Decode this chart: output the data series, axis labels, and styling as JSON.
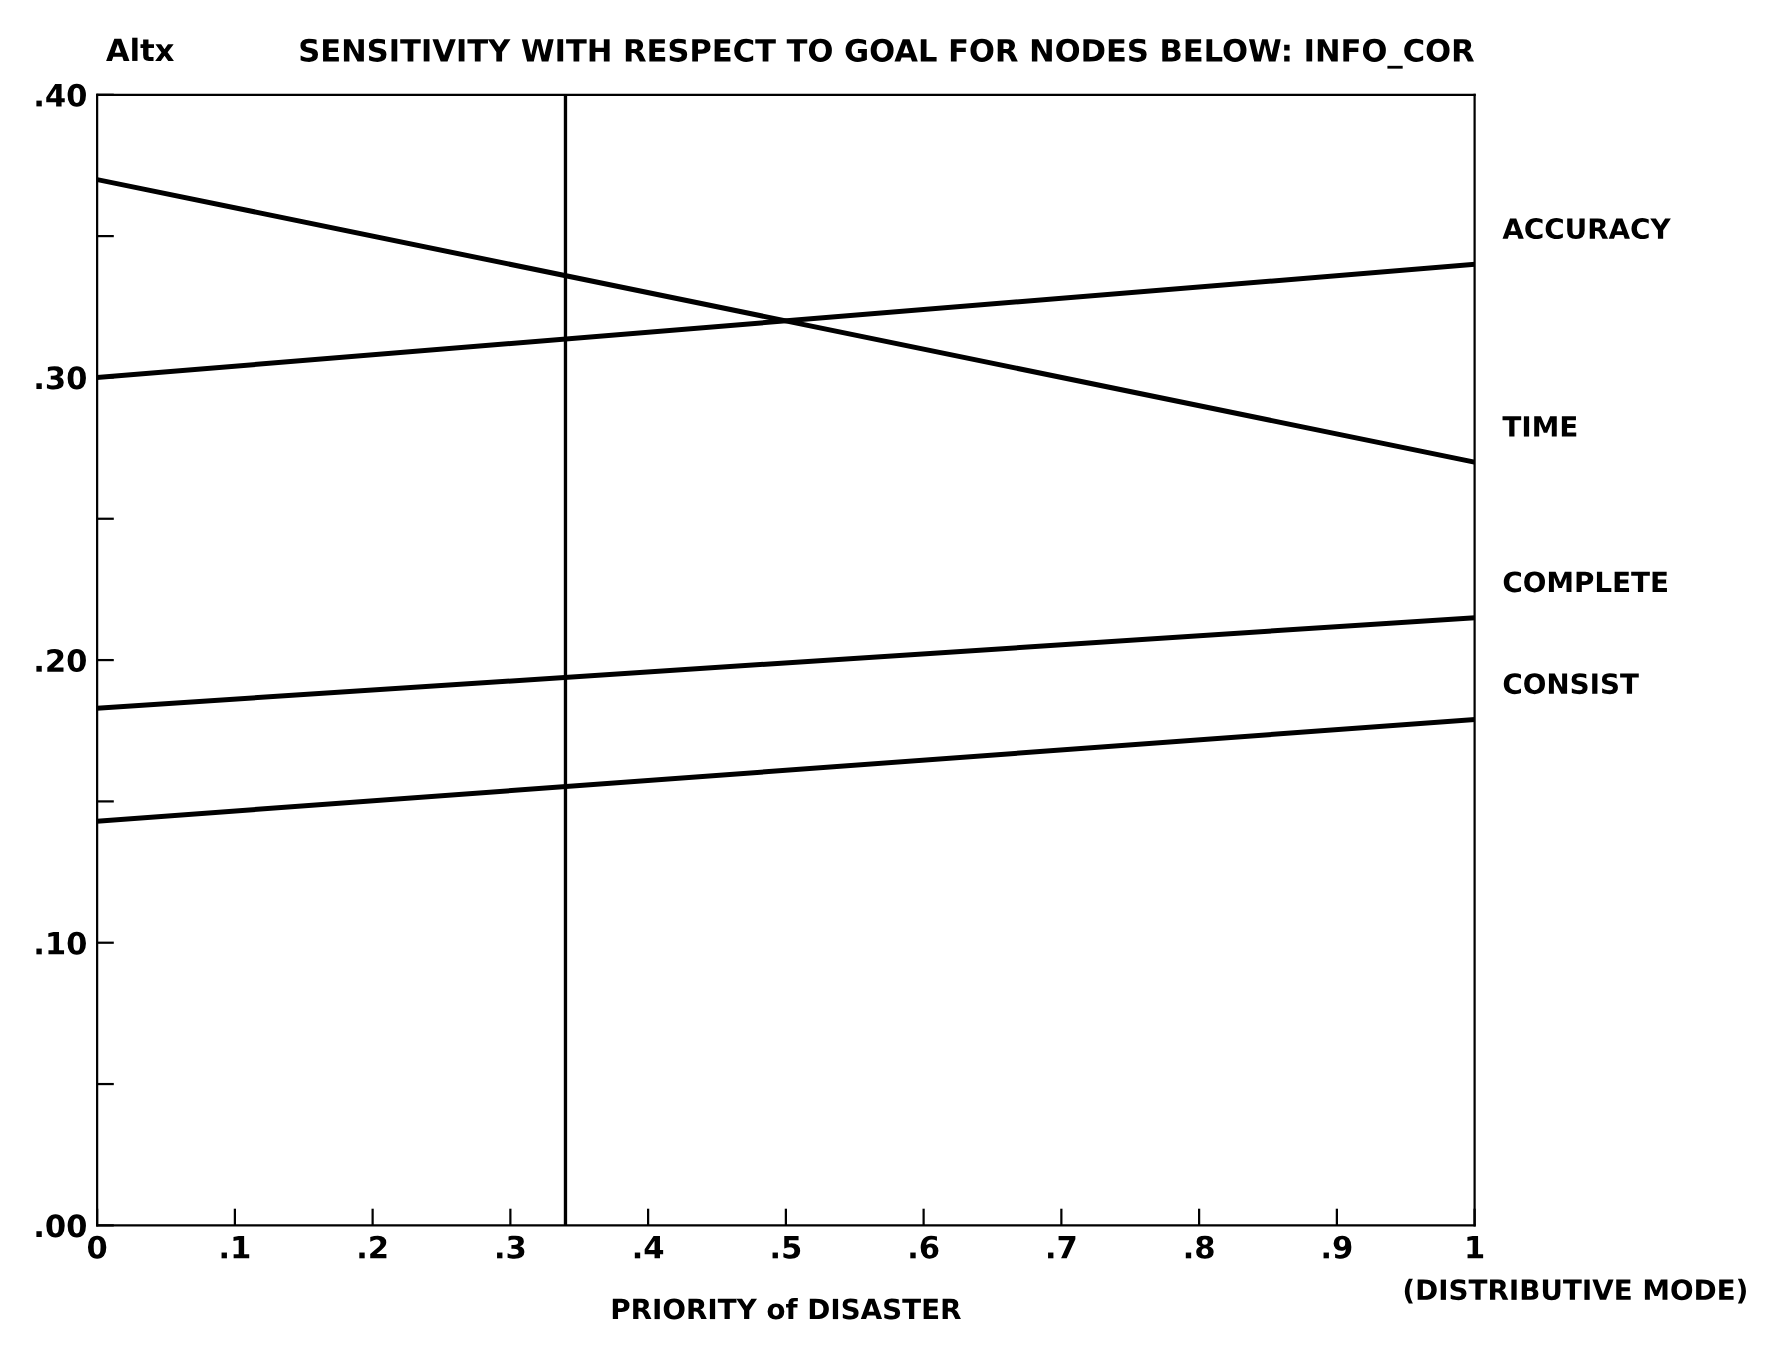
{
  "chart_data": {
    "type": "line",
    "title": "SENSITIVITY WITH RESPECT TO GOAL FOR NODES BELOW: INFO_COR",
    "ylabel": "Altx",
    "xlabel": "PRIORITY of DISASTER",
    "annotations": [
      "(DISTRIBUTIVE MODE)"
    ],
    "x": [
      0,
      1
    ],
    "series": [
      {
        "name": "ACCURACY",
        "color": "#000000",
        "values": [
          0.3,
          0.34
        ]
      },
      {
        "name": "TIME",
        "color": "#000000",
        "values": [
          0.37,
          0.27
        ]
      },
      {
        "name": "COMPLETE",
        "color": "#000000",
        "values": [
          0.183,
          0.215
        ]
      },
      {
        "name": "CONSIST",
        "color": "#000000",
        "values": [
          0.143,
          0.179
        ]
      }
    ],
    "xlim": [
      0,
      1
    ],
    "ylim": [
      0,
      0.4
    ],
    "xticks": [
      {
        "value": 0,
        "label": "0"
      },
      {
        "value": 0.1,
        "label": ".1"
      },
      {
        "value": 0.2,
        "label": ".2"
      },
      {
        "value": 0.3,
        "label": ".3"
      },
      {
        "value": 0.4,
        "label": ".4"
      },
      {
        "value": 0.5,
        "label": ".5"
      },
      {
        "value": 0.6,
        "label": ".6"
      },
      {
        "value": 0.7,
        "label": ".7"
      },
      {
        "value": 0.8,
        "label": ".8"
      },
      {
        "value": 0.9,
        "label": ".9"
      },
      {
        "value": 1,
        "label": "1"
      }
    ],
    "yticks": [
      {
        "value": 0,
        "label": ".00"
      },
      {
        "value": 0.05,
        "label": null
      },
      {
        "value": 0.1,
        "label": ".10"
      },
      {
        "value": 0.15,
        "label": null
      },
      {
        "value": 0.2,
        "label": ".20"
      },
      {
        "value": 0.25,
        "label": null
      },
      {
        "value": 0.3,
        "label": ".30"
      },
      {
        "value": 0.35,
        "label": null
      },
      {
        "value": 0.4,
        "label": ".40"
      }
    ],
    "ref_lines": [
      {
        "axis": "x",
        "value": 0.34,
        "color": "#000000"
      }
    ],
    "grid": false,
    "legend": false,
    "marker": "none",
    "line_style": "solid"
  }
}
